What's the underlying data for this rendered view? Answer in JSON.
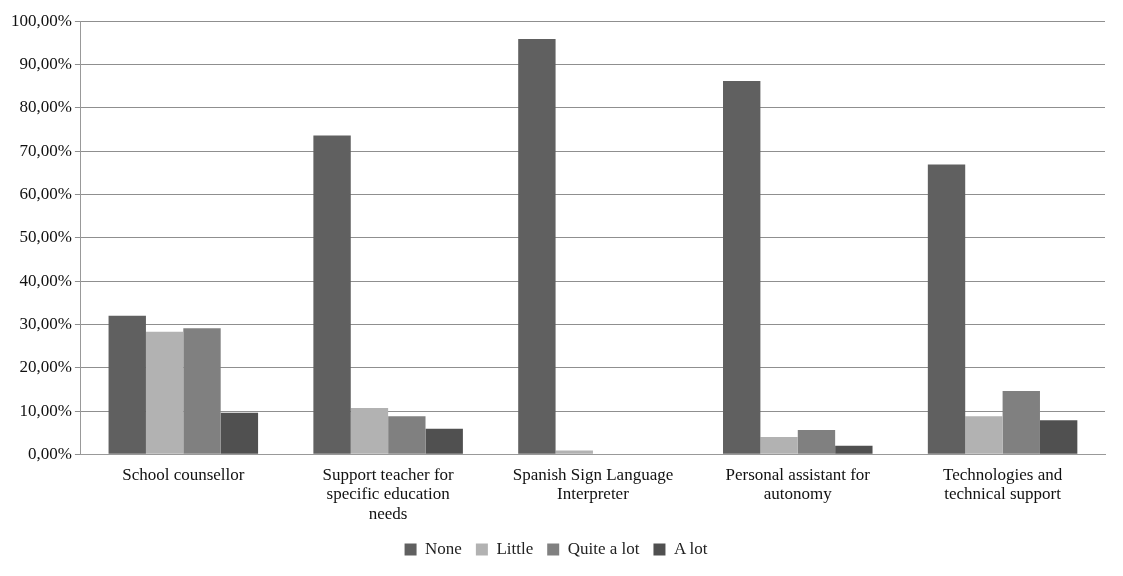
{
  "chart_data": {
    "type": "bar",
    "categories": [
      "School counsellor",
      "Support teacher for specific education needs",
      "Spanish Sign Language Interpreter",
      "Personal assistant for autonomy",
      "Technologies and technical support"
    ],
    "series": [
      {
        "name": "None",
        "color": "#606060",
        "values": [
          32.0,
          73.6,
          95.9,
          86.2,
          66.9
        ]
      },
      {
        "name": "Little",
        "color": "#b2b2b2",
        "values": [
          28.3,
          10.7,
          0.9,
          4.0,
          8.8
        ]
      },
      {
        "name": "Quite a lot",
        "color": "#808080",
        "values": [
          29.1,
          8.8,
          0,
          5.6,
          14.6
        ]
      },
      {
        "name": "A lot",
        "color": "#505050",
        "values": [
          9.6,
          5.9,
          0,
          2.0,
          7.9
        ]
      }
    ],
    "ylim": [
      0,
      100
    ],
    "yticks": [
      {
        "value": 0,
        "label": "0,00%"
      },
      {
        "value": 10,
        "label": "10,00%"
      },
      {
        "value": 20,
        "label": "20,00%"
      },
      {
        "value": 30,
        "label": "30,00%"
      },
      {
        "value": 40,
        "label": "40,00%"
      },
      {
        "value": 50,
        "label": "50,00%"
      },
      {
        "value": 60,
        "label": "60,00%"
      },
      {
        "value": 70,
        "label": "70,00%"
      },
      {
        "value": 80,
        "label": "80,00%"
      },
      {
        "value": 90,
        "label": "90,00%"
      },
      {
        "value": 100,
        "label": "100,00%"
      }
    ],
    "grid": "y",
    "legend": "bottom"
  }
}
